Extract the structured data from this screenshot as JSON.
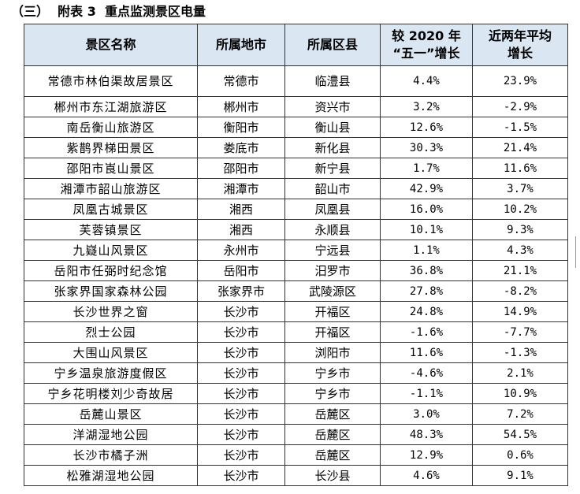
{
  "title": "（三）  附表 3  重点监测景区电量",
  "table": {
    "headers": {
      "col1": "景区名称",
      "col2": "所属地市",
      "col3": "所属区县",
      "col4_line1": "较 2020 年",
      "col4_line2": "“五一”增长",
      "col5_line1": "近两年平均",
      "col5_line2": "增长"
    },
    "rows": [
      {
        "name": "常德市林伯渠故居景区",
        "city": "常德市",
        "county": "临澧县",
        "growth_2020": "4.4%",
        "avg_growth": "23.9%"
      },
      {
        "name": "郴州市东江湖旅游区",
        "city": "郴州市",
        "county": "资兴市",
        "growth_2020": "3.2%",
        "avg_growth": "-2.9%"
      },
      {
        "name": "南岳衡山旅游区",
        "city": "衡阳市",
        "county": "衡山县",
        "growth_2020": "12.6%",
        "avg_growth": "-1.5%"
      },
      {
        "name": "紫鹊界梯田景区",
        "city": "娄底市",
        "county": "新化县",
        "growth_2020": "30.3%",
        "avg_growth": "21.4%"
      },
      {
        "name": "邵阳市崀山景区",
        "city": "邵阳市",
        "county": "新宁县",
        "growth_2020": "1.7%",
        "avg_growth": "11.6%"
      },
      {
        "name": "湘潭市韶山旅游区",
        "city": "湘潭市",
        "county": "韶山市",
        "growth_2020": "42.9%",
        "avg_growth": "3.7%"
      },
      {
        "name": "凤凰古城景区",
        "city": "湘西",
        "county": "凤凰县",
        "growth_2020": "16.0%",
        "avg_growth": "10.2%"
      },
      {
        "name": "芙蓉镇景区",
        "city": "湘西",
        "county": "永顺县",
        "growth_2020": "10.1%",
        "avg_growth": "9.3%"
      },
      {
        "name": "九嶷山风景区",
        "city": "永州市",
        "county": "宁远县",
        "growth_2020": "1.1%",
        "avg_growth": "4.3%"
      },
      {
        "name": "岳阳市任弼时纪念馆",
        "city": "岳阳市",
        "county": "汨罗市",
        "growth_2020": "36.8%",
        "avg_growth": "21.1%"
      },
      {
        "name": "张家界国家森林公园",
        "city": "张家界市",
        "county": "武陵源区",
        "growth_2020": "27.8%",
        "avg_growth": "-8.2%"
      },
      {
        "name": "长沙世界之窗",
        "city": "长沙市",
        "county": "开福区",
        "growth_2020": "24.8%",
        "avg_growth": "14.9%"
      },
      {
        "name": "烈士公园",
        "city": "长沙市",
        "county": "开福区",
        "growth_2020": "-1.6%",
        "avg_growth": "-7.7%"
      },
      {
        "name": "大围山风景区",
        "city": "长沙市",
        "county": "浏阳市",
        "growth_2020": "11.6%",
        "avg_growth": "-1.3%"
      },
      {
        "name": "宁乡温泉旅游度假区",
        "city": "长沙市",
        "county": "宁乡市",
        "growth_2020": "-4.6%",
        "avg_growth": "2.1%"
      },
      {
        "name": "宁乡花明楼刘少奇故居",
        "city": "长沙市",
        "county": "宁乡市",
        "growth_2020": "-1.1%",
        "avg_growth": "10.9%"
      },
      {
        "name": "岳麓山景区",
        "city": "长沙市",
        "county": "岳麓区",
        "growth_2020": "3.0%",
        "avg_growth": "7.2%"
      },
      {
        "name": "洋湖湿地公园",
        "city": "长沙市",
        "county": "岳麓区",
        "growth_2020": "48.3%",
        "avg_growth": "54.5%"
      },
      {
        "name": "长沙市橘子洲",
        "city": "长沙市",
        "county": "岳麓区",
        "growth_2020": "12.9%",
        "avg_growth": "0.6%"
      },
      {
        "name": "松雅湖湿地公园",
        "city": "长沙市",
        "county": "长沙县",
        "growth_2020": "4.6%",
        "avg_growth": "9.1%"
      }
    ]
  }
}
